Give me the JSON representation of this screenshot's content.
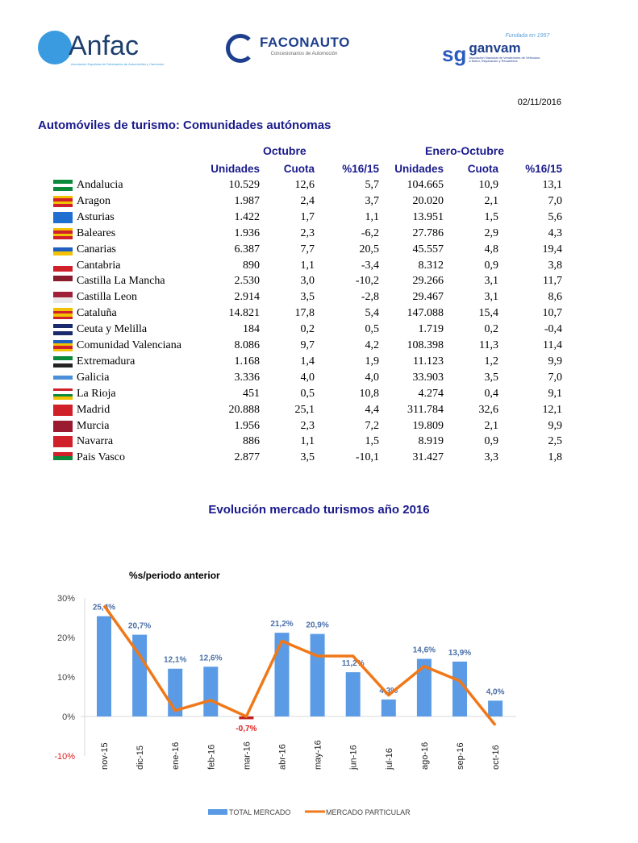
{
  "logos": {
    "anfac": "Anfac",
    "anfac_sub": "Asociación Española de Fabricantes de Automóviles y Camiones",
    "faconauto": "FACONAUTO",
    "faconauto_sub": "Concesionarios de Automoción",
    "ganvam": "ganvam",
    "ganvam_top": "Fundada en 1957",
    "ganvam_sub": "Asociación Nacional de Vendedores de Vehículos a Motor, Reparación y Recambios"
  },
  "date": "02/11/2016",
  "title": "Automóviles de turismo: Comunidades autónomas",
  "table": {
    "group_headers": [
      "Octubre",
      "Enero-Octubre"
    ],
    "columns": [
      "Unidades",
      "Cuota",
      "%16/15",
      "Unidades",
      "Cuota",
      "%16/15"
    ],
    "rows": [
      {
        "name": "Andalucia",
        "flag": [
          "#0a8a3a",
          "#ffffff",
          "#0a8a3a"
        ],
        "values": [
          "10.529",
          "12,6",
          "5,7",
          "104.665",
          "10,9",
          "13,1"
        ]
      },
      {
        "name": "Aragon",
        "flag": [
          "#f2c200",
          "#d0202a",
          "#f2c200",
          "#d0202a"
        ],
        "values": [
          "1.987",
          "2,4",
          "3,7",
          "20.020",
          "2,1",
          "7,0"
        ]
      },
      {
        "name": "Asturias",
        "flag": [
          "#1f6fd0",
          "#1f6fd0"
        ],
        "values": [
          "1.422",
          "1,7",
          "1,1",
          "13.951",
          "1,5",
          "5,6"
        ]
      },
      {
        "name": "Baleares",
        "flag": [
          "#f2c200",
          "#d0202a",
          "#f2c200",
          "#d0202a"
        ],
        "values": [
          "1.936",
          "2,3",
          "-6,2",
          "27.786",
          "2,9",
          "4,3"
        ]
      },
      {
        "name": "Canarias",
        "flag": [
          "#ffffff",
          "#1f5fbf",
          "#f2c200"
        ],
        "values": [
          "6.387",
          "7,7",
          "20,5",
          "45.557",
          "4,8",
          "19,4"
        ]
      },
      {
        "name": "Cantabria",
        "flag": [
          "#ffffff",
          "#d0202a"
        ],
        "values": [
          "890",
          "1,1",
          "-3,4",
          "8.312",
          "0,9",
          "3,8"
        ]
      },
      {
        "name": "Castilla La Mancha",
        "flag": [
          "#8a1c2c",
          "#ffffff"
        ],
        "values": [
          "2.530",
          "3,0",
          "-10,2",
          "29.266",
          "3,1",
          "11,7"
        ]
      },
      {
        "name": "Castilla Leon",
        "flag": [
          "#a0203a",
          "#e8e8e8"
        ],
        "values": [
          "2.914",
          "3,5",
          "-2,8",
          "29.467",
          "3,1",
          "8,6"
        ]
      },
      {
        "name": "Cataluña",
        "flag": [
          "#f2c200",
          "#d0202a",
          "#f2c200",
          "#d0202a"
        ],
        "values": [
          "14.821",
          "17,8",
          "5,4",
          "147.088",
          "15,4",
          "10,7"
        ]
      },
      {
        "name": "Ceuta y Melilla",
        "flag": [
          "#1a2a6a",
          "#ffffff",
          "#1a2a6a"
        ],
        "values": [
          "184",
          "0,2",
          "0,5",
          "1.719",
          "0,2",
          "-0,4"
        ]
      },
      {
        "name": "Comunidad Valenciana",
        "flag": [
          "#1f5fbf",
          "#f2c200",
          "#d0202a",
          "#f2c200"
        ],
        "values": [
          "8.086",
          "9,7",
          "4,2",
          "108.398",
          "11,3",
          "11,4"
        ]
      },
      {
        "name": "Extremadura",
        "flag": [
          "#0a8a3a",
          "#ffffff",
          "#222222"
        ],
        "values": [
          "1.168",
          "1,4",
          "1,9",
          "11.123",
          "1,2",
          "9,9"
        ]
      },
      {
        "name": "Galicia",
        "flag": [
          "#ffffff",
          "#4a8fd8",
          "#ffffff"
        ],
        "values": [
          "3.336",
          "4,0",
          "4,0",
          "33.903",
          "3,5",
          "7,0"
        ]
      },
      {
        "name": "La Rioja",
        "flag": [
          "#d0202a",
          "#ffffff",
          "#0a8a3a",
          "#f2c200"
        ],
        "values": [
          "451",
          "0,5",
          "10,8",
          "4.274",
          "0,4",
          "9,1"
        ]
      },
      {
        "name": "Madrid",
        "flag": [
          "#d0202a",
          "#d0202a"
        ],
        "values": [
          "20.888",
          "25,1",
          "4,4",
          "311.784",
          "32,6",
          "12,1"
        ]
      },
      {
        "name": "Murcia",
        "flag": [
          "#9a1a30",
          "#9a1a30"
        ],
        "values": [
          "1.956",
          "2,3",
          "7,2",
          "19.809",
          "2,1",
          "9,9"
        ]
      },
      {
        "name": "Navarra",
        "flag": [
          "#d0202a",
          "#d0202a"
        ],
        "values": [
          "886",
          "1,1",
          "1,5",
          "8.919",
          "0,9",
          "2,5"
        ]
      },
      {
        "name": "Pais Vasco",
        "flag": [
          "#d0202a",
          "#0a8a3a",
          "#ffffff"
        ],
        "values": [
          "2.877",
          "3,5",
          "-10,1",
          "31.427",
          "3,3",
          "1,8"
        ]
      }
    ]
  },
  "chart_title": "Evolución mercado turismos año 2016",
  "chart_data": {
    "type": "bar",
    "title": "%s/periodo anterior",
    "categories": [
      "nov-15",
      "dic-15",
      "ene-16",
      "feb-16",
      "mar-16",
      "abr-16",
      "may-16",
      "jun-16",
      "jul-16",
      "ago-16",
      "sep-16",
      "oct-16"
    ],
    "ylim": [
      -10,
      30
    ],
    "yticks": [
      "-10%",
      "0%",
      "10%",
      "20%",
      "30%"
    ],
    "yticks_values": [
      -10,
      0,
      10,
      20,
      30
    ],
    "series": [
      {
        "name": "TOTAL MERCADO",
        "type": "bar",
        "color": "#5b9be6",
        "values": [
          25.4,
          20.7,
          12.1,
          12.6,
          -0.7,
          21.2,
          20.9,
          11.2,
          4.3,
          14.6,
          13.9,
          4.0
        ],
        "labels": [
          "25,4%",
          "20,7%",
          "12,1%",
          "12,6%",
          "-0,7%",
          "21,2%",
          "20,9%",
          "11,2%",
          "4,3%",
          "14,6%",
          "13,9%",
          "4,0%"
        ]
      },
      {
        "name": "MERCADO PARTICULAR",
        "type": "line",
        "color": "#f07818",
        "values": [
          28.1,
          15.5,
          1.5,
          4.1,
          0.0,
          19.1,
          15.3,
          15.3,
          5.4,
          12.7,
          9.0,
          -2.2
        ]
      }
    ],
    "negative_color": "#e02020",
    "label_color": "#4a6fa8",
    "grid": false,
    "legend": "bottom"
  }
}
